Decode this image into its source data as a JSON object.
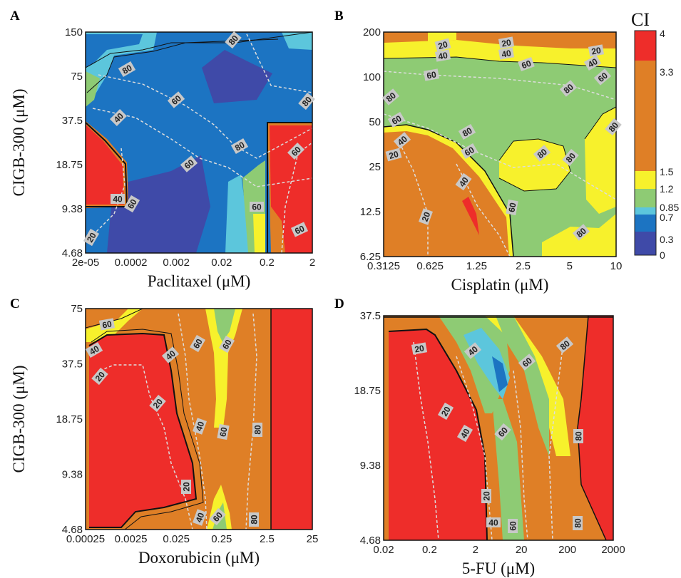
{
  "colorbar": {
    "title": "CI",
    "ticks": [
      "4",
      "3.3",
      "1.5",
      "1.2",
      "0.85",
      "0.7",
      "0.3",
      "0"
    ],
    "colors": {
      "0-0.3": "#3f4aa8",
      "0.3-0.7": "#1c74c2",
      "0.7-0.85": "#5cc6dc",
      "0.85-1.2": "#8ecb74",
      "1.2-1.5": "#f7f12c",
      "1.5-3.3": "#df7f26",
      "3.3-4": "#ee2d2a"
    }
  },
  "chart_data": [
    {
      "type": "heatmap",
      "panel": "A",
      "xlabel": "Paclitaxel (μM)",
      "ylabel": "CIGB-300 (μM)",
      "x_ticks": [
        "2e-05",
        "0.0002",
        "0.002",
        "0.02",
        "0.2",
        "2"
      ],
      "y_ticks": [
        "150",
        "75",
        "37.5",
        "18.75",
        "9.38",
        "4.68"
      ],
      "contour_labels": [
        "80",
        "80",
        "60",
        "80",
        "40",
        "60",
        "60",
        "80",
        "60",
        "40",
        "60",
        "60",
        "20"
      ],
      "dominant_ci_region": "0.3-0.7"
    },
    {
      "type": "heatmap",
      "panel": "B",
      "xlabel": "Cisplatin (μM)",
      "ylabel": "",
      "x_ticks": [
        "0.3125",
        "0.625",
        "1.25",
        "2.5",
        "5",
        "10"
      ],
      "y_ticks": [
        "200",
        "100",
        "50",
        "25",
        "12.5",
        "6.25"
      ],
      "contour_labels": [
        "20",
        "40",
        "60",
        "20",
        "40",
        "60",
        "20",
        "40",
        "80",
        "80",
        "80",
        "60",
        "80",
        "60",
        "40",
        "20",
        "60",
        "80",
        "80",
        "40",
        "60",
        "20",
        "80"
      ],
      "dominant_ci_region": "0.85-1.2"
    },
    {
      "type": "heatmap",
      "panel": "C",
      "xlabel": "Doxorubicin (μM)",
      "ylabel": "CIGB-300 (μM)",
      "x_ticks": [
        "0.00025",
        "0.0025",
        "0.025",
        "0.25",
        "2.5",
        "25"
      ],
      "y_ticks": [
        "75",
        "37.5",
        "18.75",
        "9.38",
        "4.68"
      ],
      "contour_labels": [
        "60",
        "40",
        "20",
        "40",
        "60",
        "60",
        "20",
        "40",
        "60",
        "80",
        "20",
        "40",
        "60",
        "80"
      ],
      "dominant_ci_region": "1.5-3.3"
    },
    {
      "type": "heatmap",
      "panel": "D",
      "xlabel": "5-FU (μM)",
      "ylabel": "",
      "x_ticks": [
        "0.02",
        "0.2",
        "2",
        "20",
        "200",
        "2000"
      ],
      "y_ticks": [
        "37.5",
        "18.75",
        "9.38",
        "4.68"
      ],
      "contour_labels": [
        "20",
        "40",
        "60",
        "80",
        "20",
        "40",
        "60",
        "80",
        "20",
        "40",
        "60",
        "80"
      ],
      "dominant_ci_region": "3.3-4"
    }
  ]
}
